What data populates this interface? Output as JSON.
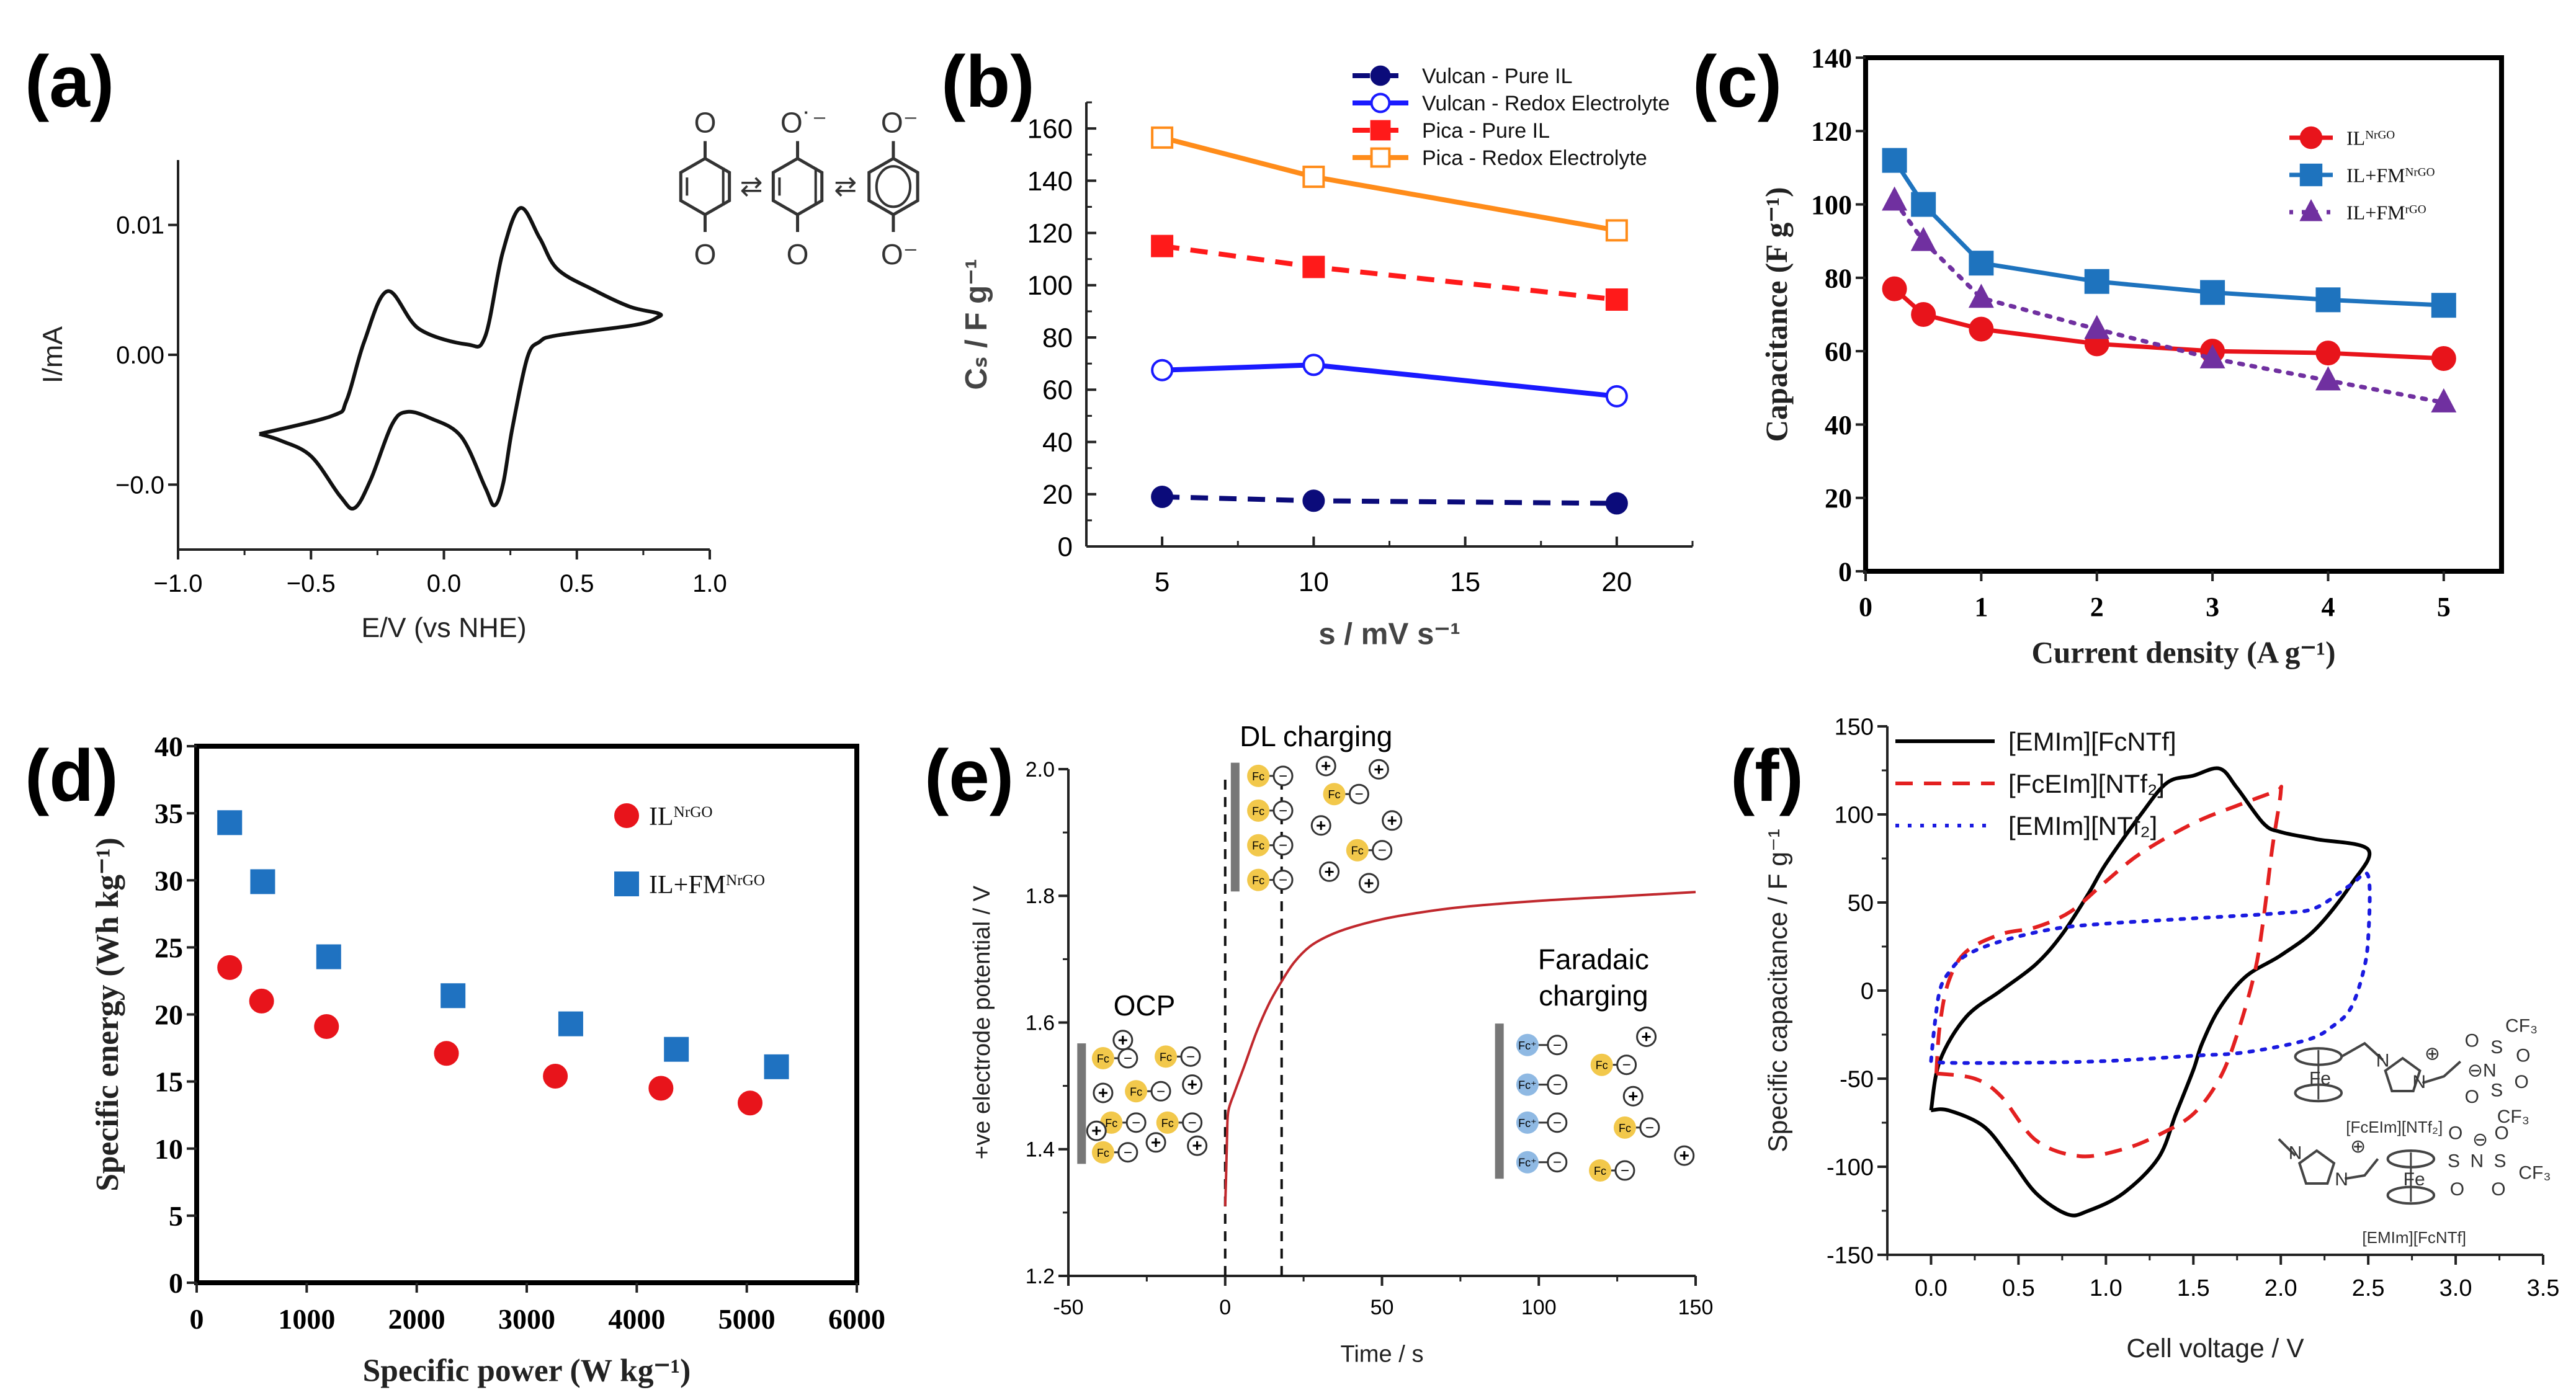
{
  "chart_data": [
    {
      "panel_label": "(a)",
      "type": "line",
      "xlabel": "E/V (vs NHE)",
      "ylabel": "I/mA",
      "xlim": [
        -1.0,
        1.0
      ],
      "ylim": [
        -0.015,
        0.015
      ],
      "xticks": [
        -1.0,
        -0.5,
        0.0,
        0.5,
        1.0
      ],
      "xtick_labels": [
        "−1.0",
        "−0.5",
        "0.0",
        "0.5",
        "1.0"
      ],
      "yticks": [
        0.01,
        0.0,
        -0.01
      ],
      "ytick_labels": [
        "0.01",
        "0.00",
        "−0.0"
      ],
      "series": [
        {
          "name": "CV",
          "color": "#111111",
          "style": "solid",
          "marker": "none",
          "x": [
            -0.694,
            -0.42,
            -0.366,
            -0.3,
            -0.212,
            -0.094,
            0.087,
            0.155,
            0.22,
            0.287,
            0.36,
            0.427,
            0.563,
            0.7,
            0.805,
            0.805,
            0.72,
            0.427,
            0.36,
            0.314,
            0.257,
            0.223,
            0.19,
            0.155,
            0.065,
            -0.049,
            -0.14,
            -0.196,
            -0.275,
            -0.336,
            -0.39,
            -0.5,
            -0.615,
            -0.694
          ],
          "y": [
            -0.0061,
            -0.0047,
            -0.0035,
            0.001,
            0.0049,
            0.002,
            0.0008,
            0.0014,
            0.0078,
            0.0113,
            0.009,
            0.0066,
            0.005,
            0.0037,
            0.0032,
            0.0029,
            0.0023,
            0.0015,
            0.001,
            -0.0002,
            -0.0057,
            -0.0099,
            -0.0116,
            -0.0102,
            -0.0063,
            -0.0049,
            -0.0044,
            -0.0054,
            -0.0096,
            -0.0118,
            -0.0109,
            -0.0078,
            -0.0066,
            -0.0061
          ]
        }
      ],
      "structure_labels": {
        "top": [
          "O",
          "O˙⁻",
          "O⁻"
        ],
        "bottom": [
          "O",
          "O",
          "O⁻"
        ],
        "arrows": [
          "⇄",
          "⇄"
        ]
      }
    },
    {
      "panel_label": "(b)",
      "type": "line",
      "xlabel": "s / mV s⁻¹",
      "ylabel": "Cₛ / F g⁻¹",
      "xlim": [
        2.5,
        22.5
      ],
      "ylim": [
        0,
        170
      ],
      "xticks": [
        5,
        10,
        15,
        20
      ],
      "xtick_labels": [
        "5",
        "10",
        "15",
        "20"
      ],
      "yticks": [
        0,
        20,
        40,
        60,
        80,
        100,
        120,
        140,
        160
      ],
      "ytick_labels": [
        "0",
        "20",
        "40",
        "60",
        "80",
        "100",
        "120",
        "140",
        "160"
      ],
      "legend": "top-right",
      "series": [
        {
          "name": "Vulcan - Pure IL",
          "color": "#0b0b7a",
          "style": "dashed",
          "marker": "circle",
          "filled": true,
          "x": [
            5,
            10,
            20
          ],
          "y": [
            19,
            17.5,
            16.5
          ]
        },
        {
          "name": "Vulcan - Redox Electrolyte",
          "color": "#1a1aff",
          "style": "solid",
          "marker": "circle",
          "filled": false,
          "x": [
            5,
            10,
            20
          ],
          "y": [
            67.5,
            69.5,
            57.5
          ]
        },
        {
          "name": "Pica - Pure IL",
          "color": "#ff1a1a",
          "style": "dashed",
          "marker": "square",
          "filled": true,
          "x": [
            5,
            10,
            20
          ],
          "y": [
            115,
            107,
            94.5
          ]
        },
        {
          "name": "Pica - Redox Electrolyte",
          "color": "#ff8c1a",
          "style": "solid",
          "marker": "square",
          "filled": false,
          "x": [
            5,
            10,
            20
          ],
          "y": [
            156.5,
            141.5,
            121
          ]
        }
      ]
    },
    {
      "panel_label": "(c)",
      "type": "line",
      "xlabel": "Current density (A g⁻¹)",
      "ylabel": "Capacitance (F g⁻¹)",
      "xlim": [
        0,
        5.5
      ],
      "ylim": [
        0,
        140
      ],
      "xticks": [
        0,
        1,
        2,
        3,
        4,
        5
      ],
      "xtick_labels": [
        "0",
        "1",
        "2",
        "3",
        "4",
        "5"
      ],
      "yticks": [
        0,
        20,
        40,
        60,
        80,
        100,
        120,
        140
      ],
      "ytick_labels": [
        "0",
        "20",
        "40",
        "60",
        "80",
        "100",
        "120",
        "140"
      ],
      "legend": "upper-right",
      "series": [
        {
          "name": "IL",
          "name_sup": "NrGO",
          "color": "#e8141b",
          "style": "solid",
          "marker": "circle",
          "filled": true,
          "x": [
            0.25,
            0.5,
            1,
            2,
            3,
            4,
            5
          ],
          "y": [
            77,
            70,
            66,
            62,
            60,
            59.5,
            58
          ]
        },
        {
          "name": "IL+FM",
          "name_sup": "NrGO",
          "color": "#1e73be",
          "style": "solid",
          "marker": "square",
          "filled": true,
          "x": [
            0.25,
            0.5,
            1,
            2,
            3,
            4,
            5
          ],
          "y": [
            112,
            100,
            84,
            79,
            76,
            74,
            72.5
          ]
        },
        {
          "name": "IL+FM",
          "name_sup": "rGO",
          "color": "#7030a0",
          "style": "dotted",
          "marker": "triangle",
          "filled": true,
          "x": [
            0.25,
            0.5,
            1,
            2,
            3,
            4,
            5
          ],
          "y": [
            101,
            90,
            74.5,
            66,
            58,
            52,
            46
          ]
        }
      ]
    },
    {
      "panel_label": "(d)",
      "type": "scatter",
      "xlabel": "Specific power (W kg⁻¹)",
      "ylabel": "Specific energy (Wh kg⁻¹)",
      "xlim": [
        0,
        6000
      ],
      "ylim": [
        0,
        40
      ],
      "xticks": [
        0,
        1000,
        2000,
        3000,
        4000,
        5000,
        6000
      ],
      "xtick_labels": [
        "0",
        "1000",
        "2000",
        "3000",
        "4000",
        "5000",
        "6000"
      ],
      "yticks": [
        0,
        5,
        10,
        15,
        20,
        25,
        30,
        35,
        40
      ],
      "ytick_labels": [
        "0",
        "5",
        "10",
        "15",
        "20",
        "25",
        "30",
        "35",
        "40"
      ],
      "legend": "upper-right",
      "series": [
        {
          "name": "IL",
          "name_sup": "NrGO",
          "color": "#e8141b",
          "style": "none",
          "marker": "circle",
          "filled": true,
          "x": [
            300,
            590,
            1180,
            2270,
            3260,
            4220,
            5030
          ],
          "y": [
            23.5,
            21,
            19.1,
            17.1,
            15.4,
            14.5,
            13.4
          ]
        },
        {
          "name": "IL+FM",
          "name_sup": "NrGO",
          "color": "#1f72c1",
          "style": "none",
          "marker": "square",
          "filled": true,
          "x": [
            300,
            600,
            1200,
            2330,
            3400,
            4360,
            5270
          ],
          "y": [
            34.3,
            29.9,
            24.3,
            21.4,
            19.3,
            17.4,
            16.1
          ]
        }
      ]
    },
    {
      "panel_label": "(e)",
      "type": "line",
      "xlabel": "Time / s",
      "ylabel": "+ve electrode potential / V",
      "xlim": [
        -50,
        150
      ],
      "ylim": [
        1.2,
        2.0
      ],
      "xticks": [
        -50,
        0,
        50,
        100,
        150
      ],
      "xtick_labels": [
        "-50",
        "0",
        "50",
        "100",
        "150"
      ],
      "yticks": [
        1.2,
        1.4,
        1.6,
        1.8,
        2.0
      ],
      "ytick_labels": [
        "1.2",
        "1.4",
        "1.6",
        "1.8",
        "2.0"
      ],
      "vlines": [
        0,
        18
      ],
      "annotations": {
        "ocp": "OCP",
        "dl": "DL charging",
        "faradaic_1": "Faradaic",
        "faradaic_2": "charging"
      },
      "schematic_labels": {
        "fc": "Fc",
        "fc_plus": "Fc⁺",
        "minus": "−",
        "plus": "+"
      },
      "series": [
        {
          "name": "potential",
          "color": "#c0282d",
          "style": "solid",
          "marker": "none",
          "x": [
            0,
            0.3,
            0.6,
            1,
            3,
            6,
            10,
            14,
            18,
            22,
            27,
            33,
            40,
            50,
            60,
            75,
            100,
            125,
            150
          ],
          "y": [
            1.31,
            1.36,
            1.42,
            1.46,
            1.49,
            1.53,
            1.585,
            1.63,
            1.665,
            1.695,
            1.72,
            1.737,
            1.75,
            1.763,
            1.772,
            1.782,
            1.792,
            1.799,
            1.806
          ]
        }
      ]
    },
    {
      "panel_label": "(f)",
      "type": "line",
      "xlabel": "Cell voltage / V",
      "ylabel": "Specific capacitance / F g⁻¹",
      "xlim": [
        -0.25,
        3.5
      ],
      "ylim": [
        -150,
        150
      ],
      "xticks": [
        0,
        0.5,
        1.0,
        1.5,
        2.0,
        2.5,
        3.0,
        3.5
      ],
      "xtick_labels": [
        "0.0",
        "0.5",
        "1.0",
        "1.5",
        "2.0",
        "2.5",
        "3.0",
        "3.5"
      ],
      "yticks": [
        -150,
        -100,
        -50,
        0,
        50,
        100,
        150
      ],
      "ytick_labels": [
        "-150",
        "-100",
        "-50",
        "0",
        "50",
        "100",
        "150"
      ],
      "legend": "top-left",
      "series": [
        {
          "name": "[EMIm][FcNTf]",
          "color": "#000000",
          "style": "solid",
          "marker": "none",
          "x": [
            0,
            0.05,
            0.2,
            0.4,
            0.6,
            0.75,
            0.9,
            1.0,
            1.2,
            1.35,
            1.5,
            1.65,
            1.75,
            1.9,
            2.0,
            2.2,
            2.5,
            2.4,
            2.2,
            2.0,
            1.8,
            1.65,
            1.55,
            1.5,
            1.4,
            1.3,
            1.1,
            0.9,
            0.78,
            0.6,
            0.45,
            0.3,
            0.1,
            0
          ],
          "y": [
            -68,
            -40,
            -15,
            0,
            15,
            32,
            55,
            72,
            100,
            118,
            122,
            126,
            115,
            95,
            90,
            86,
            80,
            60,
            35,
            20,
            8,
            -10,
            -30,
            -45,
            -70,
            -95,
            -115,
            -125,
            -127,
            -115,
            -95,
            -77,
            -68,
            -68
          ]
        },
        {
          "name": "[FcEIm][NTf₂]",
          "color": "#e32020",
          "style": "dashed",
          "marker": "none",
          "x": [
            0.03,
            0.05,
            0.1,
            0.2,
            0.4,
            0.6,
            0.8,
            1.0,
            1.2,
            1.5,
            1.75,
            1.97,
            2.0,
            1.95,
            1.9,
            1.85,
            1.75,
            1.65,
            1.5,
            1.3,
            1.1,
            0.85,
            0.6,
            0.4,
            0.25,
            0.03
          ],
          "y": [
            -47,
            -20,
            5,
            22,
            32,
            36,
            45,
            62,
            78,
            95,
            105,
            113,
            113,
            80,
            40,
            10,
            -25,
            -50,
            -70,
            -82,
            -90,
            -94,
            -85,
            -60,
            -50,
            -47
          ]
        },
        {
          "name": "[EMIm][NTf₂]",
          "color": "#1a1ae0",
          "style": "dotted",
          "marker": "none",
          "x": [
            0,
            0.02,
            0.05,
            0.1,
            0.2,
            0.4,
            0.7,
            1.0,
            1.5,
            2.0,
            2.2,
            2.4,
            2.5,
            2.5,
            2.47,
            2.4,
            2.3,
            2.15,
            1.8,
            1.5,
            1.0,
            0.5,
            0.1,
            0
          ],
          "y": [
            -40,
            -20,
            0,
            10,
            20,
            28,
            35,
            38,
            41,
            44,
            47,
            60,
            65,
            30,
            10,
            -10,
            -20,
            -28,
            -35,
            -37,
            -40,
            -41,
            -41,
            -40
          ]
        }
      ],
      "structures": [
        {
          "caption": "[FcEIm][NTf₂]",
          "atoms": [
            "Fe",
            "N",
            "N",
            "⊕",
            "O",
            "S",
            "O",
            "CF₃",
            "⊖N",
            "O",
            "S",
            "O",
            "CF₃"
          ]
        },
        {
          "caption": "[EMIm][FcNTf]",
          "atoms": [
            "N",
            "N",
            "⊕",
            "Fe",
            "S",
            "O",
            "O",
            "⊖",
            "N",
            "S",
            "O",
            "O",
            "CF₃"
          ]
        }
      ]
    }
  ]
}
